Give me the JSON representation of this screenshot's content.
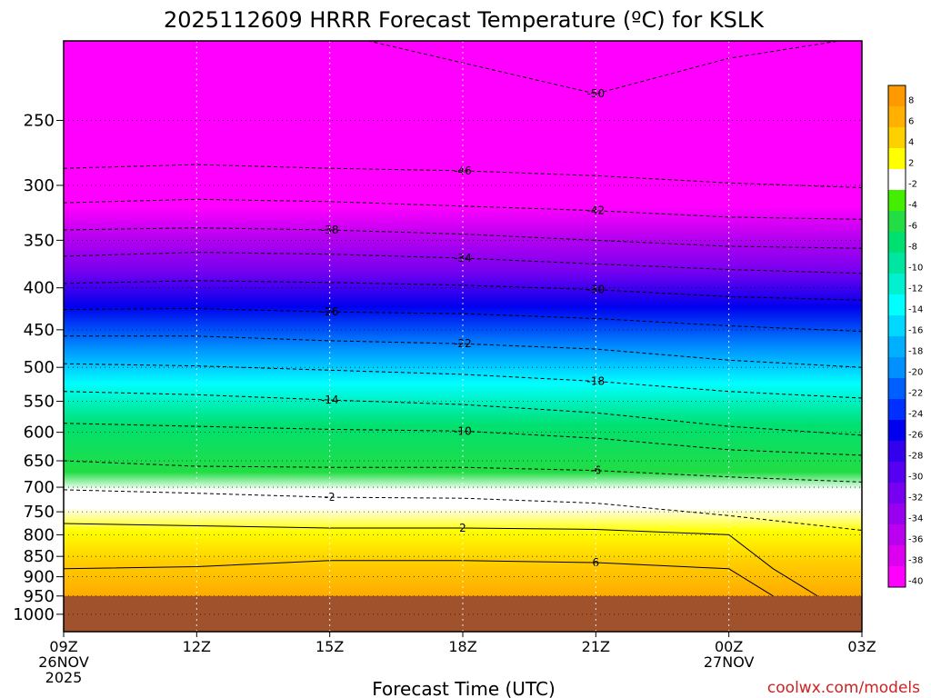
{
  "chart_data": {
    "type": "heatmap",
    "title": "2025112609 HRRR Forecast Temperature (ºC) for KSLK",
    "xlabel": "Forecast Time (UTC)",
    "ylabel": "",
    "y_axis": {
      "ticks": [
        250,
        300,
        350,
        400,
        450,
        500,
        550,
        600,
        650,
        700,
        750,
        800,
        850,
        900,
        950,
        1000
      ],
      "scale": "log",
      "range": [
        1050,
        200
      ]
    },
    "x_axis": {
      "ticks": [
        {
          "hour": 0,
          "lines": [
            "09Z",
            "26NOV",
            "2025"
          ]
        },
        {
          "hour": 3,
          "lines": [
            "12Z"
          ]
        },
        {
          "hour": 6,
          "lines": [
            "15Z"
          ]
        },
        {
          "hour": 9,
          "lines": [
            "18Z"
          ]
        },
        {
          "hour": 12,
          "lines": [
            "21Z"
          ]
        },
        {
          "hour": 15,
          "lines": [
            "00Z",
            "27NOV"
          ]
        },
        {
          "hour": 18,
          "lines": [
            "03Z"
          ]
        }
      ],
      "range": [
        0,
        18
      ]
    },
    "colorbar": {
      "labels": [
        "8",
        "6",
        "4",
        "2",
        "-2",
        "-4",
        "-6",
        "-8",
        "-10",
        "-12",
        "-14",
        "-16",
        "-18",
        "-20",
        "-22",
        "-24",
        "-26",
        "-28",
        "-30",
        "-32",
        "-34",
        "-36",
        "-38",
        "-40"
      ],
      "colors": [
        "#ff9900",
        "#ffb000",
        "#ffd000",
        "#ffff00",
        "#ffffff",
        "#44ee00",
        "#22dd44",
        "#00e070",
        "#00e6a0",
        "#00f0d0",
        "#00ffff",
        "#00d8ff",
        "#00b0ff",
        "#0090ff",
        "#0060ff",
        "#0030ff",
        "#0000ee",
        "#3300ee",
        "#5500f0",
        "#7700f0",
        "#9900f0",
        "#bb00f0",
        "#dd00f0",
        "#ff00ff"
      ]
    },
    "ground_level_hpa": 950,
    "contours": [
      {
        "label": "-50",
        "levels": [
          [
            0,
            200
          ],
          [
            6,
            195
          ],
          [
            12,
            232
          ],
          [
            15,
            210
          ],
          [
            18,
            198
          ]
        ]
      },
      {
        "label": "-46",
        "levels": [
          [
            0,
            286
          ],
          [
            3,
            283
          ],
          [
            6,
            286
          ],
          [
            9,
            288
          ],
          [
            12,
            292
          ],
          [
            15,
            298
          ],
          [
            18,
            302
          ]
        ]
      },
      {
        "label": "-42",
        "levels": [
          [
            0,
            315
          ],
          [
            3,
            312
          ],
          [
            6,
            314
          ],
          [
            9,
            318
          ],
          [
            12,
            322
          ],
          [
            15,
            328
          ],
          [
            18,
            330
          ]
        ]
      },
      {
        "label": "-38",
        "levels": [
          [
            0,
            340
          ],
          [
            3,
            338
          ],
          [
            6,
            340
          ],
          [
            9,
            344
          ],
          [
            12,
            350
          ],
          [
            15,
            356
          ],
          [
            18,
            358
          ]
        ]
      },
      {
        "label": "-34",
        "levels": [
          [
            0,
            366
          ],
          [
            3,
            362
          ],
          [
            6,
            364
          ],
          [
            9,
            368
          ],
          [
            12,
            374
          ],
          [
            15,
            380
          ],
          [
            18,
            384
          ]
        ]
      },
      {
        "label": "-30",
        "levels": [
          [
            0,
            395
          ],
          [
            3,
            392
          ],
          [
            6,
            394
          ],
          [
            9,
            397
          ],
          [
            12,
            402
          ],
          [
            15,
            410
          ],
          [
            18,
            414
          ]
        ]
      },
      {
        "label": "-26",
        "levels": [
          [
            0,
            425
          ],
          [
            3,
            424
          ],
          [
            6,
            428
          ],
          [
            9,
            430
          ],
          [
            12,
            436
          ],
          [
            15,
            445
          ],
          [
            18,
            452
          ]
        ]
      },
      {
        "label": "-22",
        "levels": [
          [
            0,
            458
          ],
          [
            3,
            458
          ],
          [
            6,
            464
          ],
          [
            9,
            468
          ],
          [
            12,
            475
          ],
          [
            15,
            490
          ],
          [
            18,
            500
          ]
        ]
      },
      {
        "label": "-18",
        "levels": [
          [
            0,
            495
          ],
          [
            3,
            498
          ],
          [
            6,
            504
          ],
          [
            9,
            510
          ],
          [
            12,
            520
          ],
          [
            15,
            535
          ],
          [
            18,
            545
          ]
        ]
      },
      {
        "label": "-14",
        "levels": [
          [
            0,
            535
          ],
          [
            3,
            540
          ],
          [
            6,
            548
          ],
          [
            9,
            555
          ],
          [
            12,
            568
          ],
          [
            15,
            590
          ],
          [
            18,
            605
          ]
        ]
      },
      {
        "label": "-10",
        "levels": [
          [
            0,
            585
          ],
          [
            3,
            590
          ],
          [
            6,
            595
          ],
          [
            9,
            598
          ],
          [
            12,
            610
          ],
          [
            15,
            630
          ],
          [
            18,
            640
          ]
        ]
      },
      {
        "label": "-6",
        "levels": [
          [
            0,
            650
          ],
          [
            3,
            660
          ],
          [
            6,
            662
          ],
          [
            9,
            662
          ],
          [
            12,
            668
          ],
          [
            15,
            680
          ],
          [
            18,
            690
          ]
        ]
      },
      {
        "label": "-2",
        "levels": [
          [
            0,
            705
          ],
          [
            3,
            712
          ],
          [
            6,
            720
          ],
          [
            9,
            722
          ],
          [
            12,
            732
          ],
          [
            15,
            758
          ],
          [
            18,
            790
          ]
        ]
      },
      {
        "label": "2",
        "levels": [
          [
            0,
            775
          ],
          [
            3,
            780
          ],
          [
            6,
            785
          ],
          [
            9,
            785
          ],
          [
            12,
            788
          ],
          [
            15,
            800
          ],
          [
            16,
            880
          ],
          [
            17,
            950
          ]
        ]
      },
      {
        "label": "6",
        "levels": [
          [
            0,
            880
          ],
          [
            3,
            875
          ],
          [
            6,
            860
          ],
          [
            9,
            860
          ],
          [
            12,
            865
          ],
          [
            15,
            880
          ],
          [
            16,
            950
          ]
        ]
      }
    ]
  },
  "credit": "coolwx.com/models"
}
